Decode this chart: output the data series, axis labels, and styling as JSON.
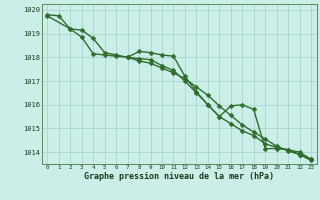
{
  "x": [
    0,
    1,
    2,
    3,
    4,
    5,
    6,
    7,
    8,
    9,
    10,
    11,
    12,
    13,
    14,
    15,
    16,
    17,
    18,
    19,
    20,
    21,
    22,
    23
  ],
  "line1_y": [
    1019.8,
    1019.75,
    1019.2,
    1018.85,
    1018.15,
    1018.1,
    1018.05,
    1018.0,
    1018.25,
    1018.2,
    1018.1,
    1018.05,
    1017.2,
    1016.55,
    1016.0,
    1015.5,
    1015.95,
    1016.0,
    1015.8,
    1014.15,
    1014.15,
    1014.1,
    1014.0,
    1013.7
  ],
  "line2_y": [
    1019.75,
    null,
    1019.2,
    1019.15,
    1018.8,
    1018.2,
    1018.1,
    1018.0,
    1017.95,
    1017.9,
    1017.65,
    1017.45,
    1017.0,
    1016.5,
    1016.0,
    1015.5,
    1015.2,
    1014.9,
    1014.7,
    1014.35,
    1014.2,
    1014.1,
    1013.9,
    1013.7
  ],
  "line3_y": [
    null,
    null,
    null,
    null,
    null,
    null,
    null,
    1018.0,
    1017.85,
    1017.75,
    1017.55,
    1017.35,
    1017.1,
    1016.75,
    1016.4,
    1015.95,
    1015.55,
    1015.15,
    1014.85,
    1014.55,
    1014.25,
    1014.05,
    1013.9,
    1013.65
  ],
  "ylim": [
    1013.5,
    1020.25
  ],
  "yticks": [
    1014,
    1015,
    1016,
    1017,
    1018,
    1019,
    1020
  ],
  "xlim": [
    -0.5,
    23.5
  ],
  "xticks": [
    0,
    1,
    2,
    3,
    4,
    5,
    6,
    7,
    8,
    9,
    10,
    11,
    12,
    13,
    14,
    15,
    16,
    17,
    18,
    19,
    20,
    21,
    22,
    23
  ],
  "xlabel": "Graphe pression niveau de la mer (hPa)",
  "bg_color": "#cceee8",
  "grid_color": "#aad4ce",
  "line_color": "#2d6e2d",
  "markersize": 2.5,
  "linewidth": 1.0
}
